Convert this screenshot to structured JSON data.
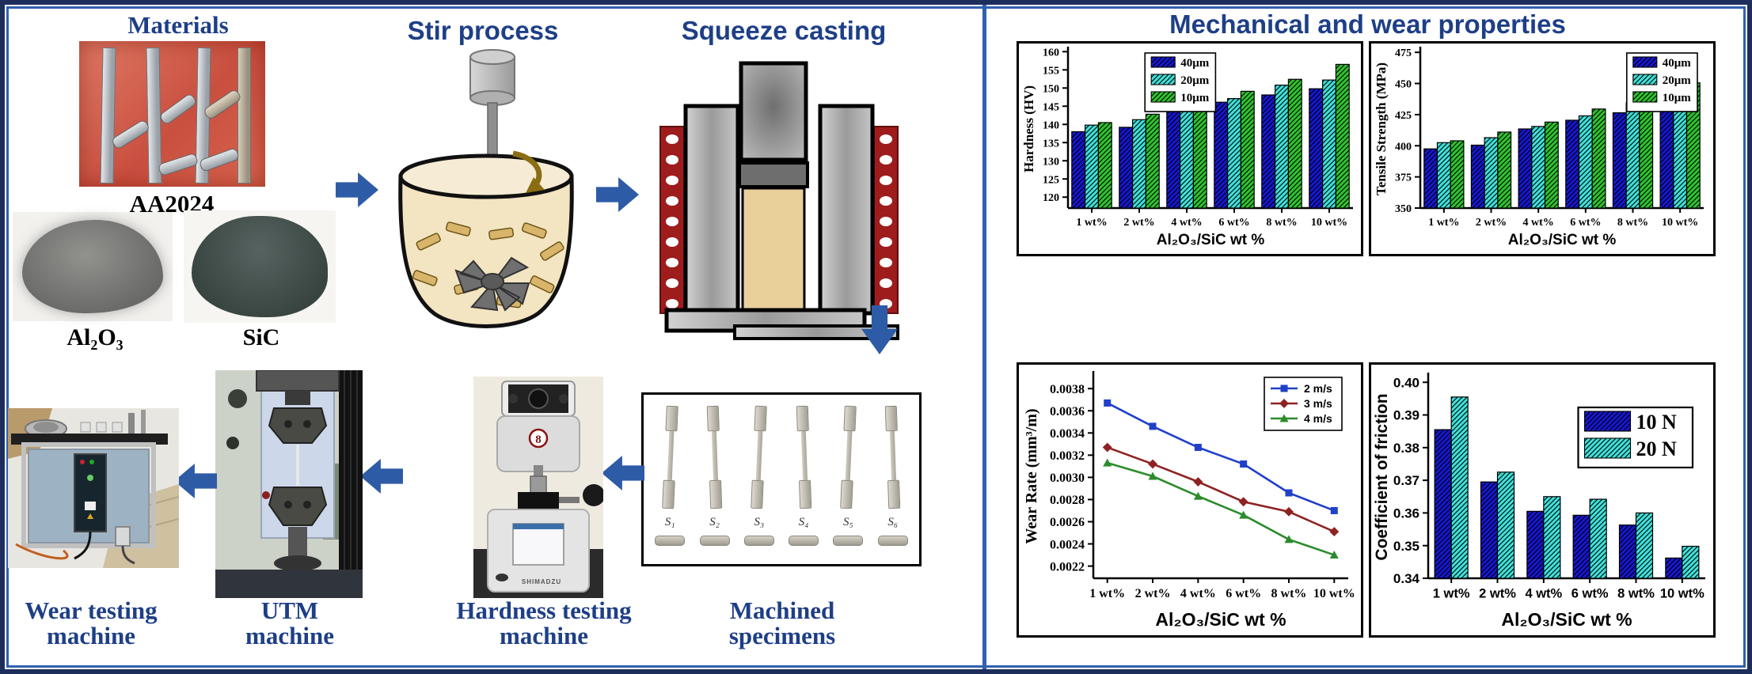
{
  "left_panel": {
    "materials": {
      "title": "Materials",
      "aa2024_caption": "AA2024",
      "al2o3_caption": "Al₂O₃",
      "sic_caption": "SiC"
    },
    "stir_title": "Stir process",
    "squeeze_title": "Squeeze casting",
    "specimens": {
      "caption": "Machined specimens",
      "ids": [
        "S₁",
        "S₂",
        "S₃",
        "S₄",
        "S₅",
        "S₆"
      ]
    },
    "machines": {
      "wear": "Wear testing machine",
      "utm": "UTM machine",
      "hardness": "Hardness testing machine",
      "hardness_brand": "SHIMADZU",
      "hardness_logo": "8"
    }
  },
  "right_panel": {
    "title": "Mechanical and wear properties"
  },
  "colors": {
    "heading": "#1e3f87",
    "arrow": "#2e5ba6",
    "outer_border": "#1d2d5c",
    "panel_border": "#3061ae",
    "bar_blue": "#1717cf",
    "bar_cyan": "#3fe0d9",
    "bar_green": "#2fc32f",
    "line_blue": "#2140c8",
    "line_red": "#8e2222",
    "line_green": "#2c8c2c"
  },
  "chart_data": [
    {
      "id": "hardness",
      "type": "bar",
      "categories": [
        "1 wt%",
        "2 wt%",
        "4 wt%",
        "6 wt%",
        "8 wt%",
        "10 wt%"
      ],
      "series": [
        {
          "name": "40μm",
          "color": "#1717cf",
          "hatch": true,
          "values": [
            138.0,
            139.2,
            143.5,
            146.1,
            148.1,
            149.8
          ]
        },
        {
          "name": "20μm",
          "color": "#3fe0d9",
          "hatch": true,
          "values": [
            139.8,
            141.3,
            144.3,
            147.1,
            150.8,
            152.2
          ]
        },
        {
          "name": "10μm",
          "color": "#2fc32f",
          "hatch": true,
          "values": [
            140.5,
            142.8,
            145.6,
            149.1,
            152.4,
            156.5
          ]
        }
      ],
      "xlabel": "Al₂O₃/SiC wt %",
      "ylabel": "Hardness (HV)",
      "ylim": [
        117,
        160.5
      ],
      "yticks": [
        "120",
        "125",
        "130",
        "135",
        "140",
        "145",
        "150",
        "155",
        "160"
      ],
      "legend_pos": "top-center",
      "tick_font": "serif",
      "grid": false
    },
    {
      "id": "tensile",
      "type": "bar",
      "categories": [
        "1 wt%",
        "2 wt%",
        "4 wt%",
        "6 wt%",
        "8 wt%",
        "10 wt%"
      ],
      "series": [
        {
          "name": "40μm",
          "color": "#1717cf",
          "hatch": true,
          "values": [
            397.5,
            400.5,
            413.5,
            420.5,
            426.5,
            431.5
          ]
        },
        {
          "name": "20μm",
          "color": "#3fe0d9",
          "hatch": true,
          "values": [
            402.5,
            406.5,
            415.5,
            424.0,
            434.5,
            438.5
          ]
        },
        {
          "name": "10μm",
          "color": "#2fc32f",
          "hatch": true,
          "values": [
            404.0,
            411.0,
            419.0,
            429.5,
            438.5,
            450.5
          ]
        }
      ],
      "xlabel": "Al₂O₃/SiC wt %",
      "ylabel": "Tensile Strength (MPa)",
      "ylim": [
        350,
        477
      ],
      "yticks": [
        "350",
        "375",
        "400",
        "425",
        "450",
        "475"
      ],
      "legend_pos": "top-right",
      "tick_font": "serif",
      "grid": false
    },
    {
      "id": "wear",
      "type": "line",
      "categories": [
        "1 wt%",
        "2 wt%",
        "4 wt%",
        "6 wt%",
        "8 wt%",
        "10 wt%"
      ],
      "series": [
        {
          "name": "2 m/s",
          "color": "#2140c8",
          "marker": "square",
          "values": [
            0.00367,
            0.00346,
            0.00327,
            0.00312,
            0.00286,
            0.0027
          ]
        },
        {
          "name": "3 m/s",
          "color": "#8e2222",
          "marker": "diamond",
          "values": [
            0.00327,
            0.00312,
            0.00296,
            0.00278,
            0.00269,
            0.00251
          ]
        },
        {
          "name": "4 m/s",
          "color": "#2c8c2c",
          "marker": "triangle",
          "values": [
            0.00313,
            0.00301,
            0.00283,
            0.00266,
            0.00244,
            0.0023
          ]
        }
      ],
      "xlabel": "Al₂O₃/SiC wt %",
      "ylabel": "Wear Rate (mm³/m)",
      "ylim": [
        0.00209,
        0.00393
      ],
      "yticks": [
        "0.0022",
        "0.0024",
        "0.0026",
        "0.0028",
        "0.0030",
        "0.0032",
        "0.0034",
        "0.0036",
        "0.0038"
      ],
      "legend_pos": "top-right",
      "tick_font": "serif",
      "grid": false
    },
    {
      "id": "friction",
      "type": "bar",
      "categories": [
        "1 wt%",
        "2 wt%",
        "4 wt%",
        "6 wt%",
        "8 wt%",
        "10 wt%"
      ],
      "series": [
        {
          "name": "10 N",
          "color": "#1717cf",
          "hatch": true,
          "values": [
            0.3855,
            0.3695,
            0.3605,
            0.3593,
            0.3563,
            0.3462
          ]
        },
        {
          "name": "20 N",
          "color": "#3fe0d9",
          "hatch": true,
          "values": [
            0.3955,
            0.3725,
            0.365,
            0.3642,
            0.36,
            0.3498
          ]
        }
      ],
      "xlabel": "Al₂O₃/SiC wt %",
      "ylabel": "Coefficient of friction",
      "ylim": [
        0.34,
        0.402
      ],
      "yticks": [
        "0.34",
        "0.35",
        "0.36",
        "0.37",
        "0.38",
        "0.39",
        "0.40"
      ],
      "legend_pos": "right",
      "tick_font": "sans",
      "grid": false
    }
  ]
}
